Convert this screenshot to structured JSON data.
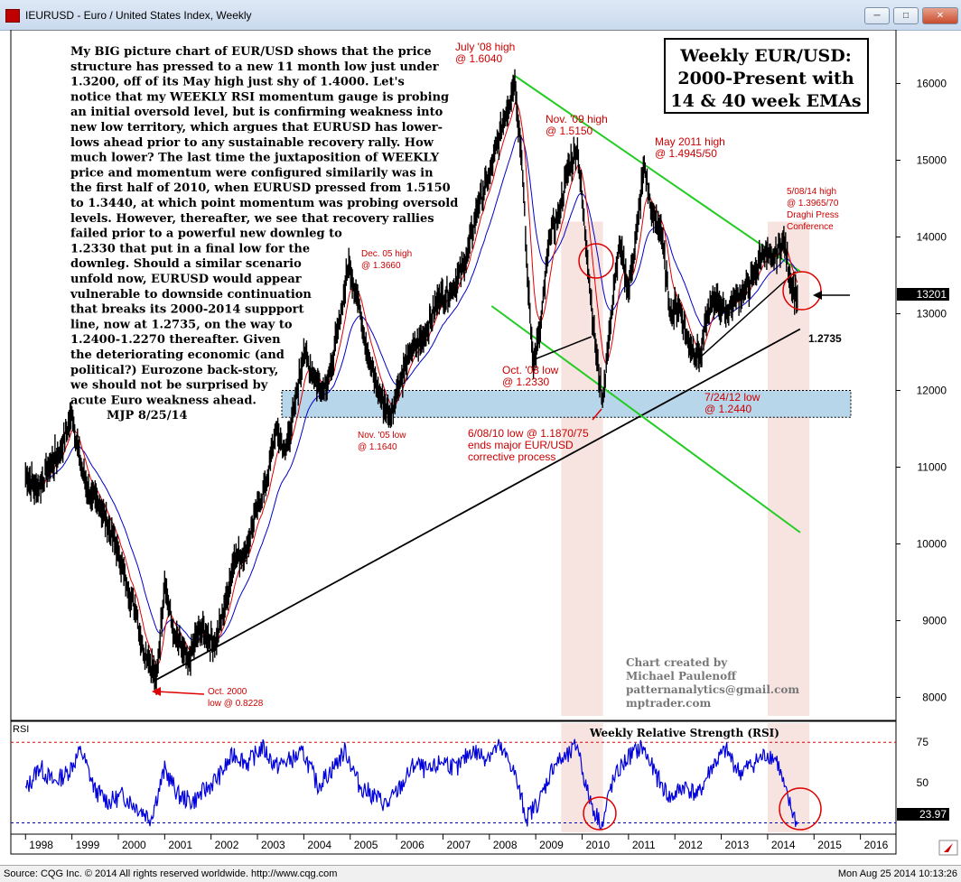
{
  "window": {
    "title": "IEURUSD - Euro / United States Index, Weekly",
    "buttons": [
      "minimize",
      "maximize",
      "close"
    ]
  },
  "status": {
    "source": "Source: CQG Inc. © 2014 All rights reserved worldwide. http://www.cqg.com",
    "datetime": "Mon Aug 25 2014 10:13:26"
  },
  "colors": {
    "price": "#000000",
    "ema14": "#e00000",
    "ema40": "#0000cc",
    "rsi": "#0000dd",
    "channel": "#22cc22",
    "annotation": "#cc0000",
    "zone": "#b8d6ea",
    "shade": "#f3d9d4"
  },
  "chart_data": [
    {
      "type": "line",
      "title": "Weekly EUR/USD: 2000-Present with 14 & 40 week EMAs",
      "x_axis_labels": [
        "1998",
        "1999",
        "2000",
        "2001",
        "2002",
        "2003",
        "2004",
        "2005",
        "2006",
        "2007",
        "2008",
        "2009",
        "2010",
        "2011",
        "2012",
        "2013",
        "2014",
        "2015",
        "2016"
      ],
      "y_ticks": [
        8000,
        9000,
        10000,
        11000,
        12000,
        13000,
        14000,
        15000,
        16000
      ],
      "ylim": [
        7700,
        16700
      ],
      "last_price": "13201",
      "series": [
        {
          "name": "EURUSD",
          "x": [
            1998.0,
            1998.25,
            1998.5,
            1998.75,
            1999.0,
            1999.2,
            1999.4,
            1999.6,
            1999.8,
            2000.0,
            2000.2,
            2000.4,
            2000.5,
            2000.65,
            2000.82,
            2001.0,
            2001.2,
            2001.4,
            2001.5,
            2001.75,
            2001.9,
            2002.1,
            2002.3,
            2002.5,
            2002.75,
            2003.0,
            2003.2,
            2003.4,
            2003.6,
            2003.8,
            2004.0,
            2004.2,
            2004.4,
            2004.6,
            2004.8,
            2004.97,
            2005.2,
            2005.4,
            2005.6,
            2005.87,
            2006.0,
            2006.3,
            2006.6,
            2006.9,
            2007.2,
            2007.5,
            2007.75,
            2008.0,
            2008.3,
            2008.55,
            2008.7,
            2008.82,
            2008.95,
            2009.1,
            2009.3,
            2009.5,
            2009.7,
            2009.9,
            2010.1,
            2010.3,
            2010.44,
            2010.6,
            2010.8,
            2011.0,
            2011.2,
            2011.34,
            2011.5,
            2011.7,
            2011.9,
            2012.1,
            2012.3,
            2012.56,
            2012.7,
            2012.9,
            2013.1,
            2013.3,
            2013.5,
            2013.7,
            2013.9,
            2014.1,
            2014.35,
            2014.5,
            2014.64
          ],
          "values": [
            10900,
            10700,
            11000,
            11200,
            11700,
            11000,
            10600,
            10500,
            10200,
            9900,
            9400,
            9100,
            8700,
            8500,
            8230,
            9500,
            8800,
            8600,
            8440,
            8900,
            8800,
            8700,
            9200,
            9800,
            9900,
            10500,
            10800,
            11500,
            11200,
            11800,
            12500,
            12200,
            12000,
            12300,
            13000,
            13660,
            13100,
            12400,
            12000,
            11640,
            12000,
            12500,
            12700,
            13200,
            13300,
            13700,
            14400,
            14800,
            15500,
            16040,
            15000,
            13500,
            12330,
            12800,
            14000,
            14300,
            14900,
            15150,
            13800,
            12500,
            11870,
            12800,
            13900,
            13300,
            14200,
            14945,
            14300,
            14100,
            13000,
            13100,
            12600,
            12440,
            13000,
            13200,
            13000,
            13200,
            13300,
            13500,
            13800,
            13700,
            13965,
            13400,
            13201
          ]
        }
      ],
      "annotations": [
        {
          "text": "July '08 high",
          "sub": "@ 1.6040"
        },
        {
          "text": "Nov. '09 high",
          "sub": "@ 1.5150"
        },
        {
          "text": "May 2011 high",
          "sub": "@ 1.4945/50"
        },
        {
          "text": "5/08/14 high",
          "sub": "@ 1.3965/70",
          "sub2": "Draghi Press",
          "sub3": "Conference"
        },
        {
          "text": "Dec. 05 high",
          "sub": "@ 1.3660"
        },
        {
          "text": "Oct. '08 low",
          "sub": "@ 1.2330"
        },
        {
          "text": "Nov. '05 low",
          "sub": "@ 1.1640"
        },
        {
          "text": "7/24/12 low",
          "sub": "@ 1.2440"
        },
        {
          "text": "6/08/10 low @ 1.1870/75",
          "sub": "ends major EUR/USD",
          "sub2": "corrective process"
        },
        {
          "text": "Oct. 2000",
          "sub": "low @ 0.8228"
        },
        {
          "text": "1.2735"
        }
      ],
      "commentary": [
        "My BIG picture chart of EUR/USD shows that the price",
        "structure has pressed to a new 11 month low just under",
        "1.3200, off of its May high just shy of 1.4000. Let's",
        "notice that my WEEKLY RSI momentum gauge is probing",
        "an initial oversold level, but is confirming weakness into",
        "new low territory, which argues that EURUSD has lower-",
        "lows ahead prior to any sustainable recovery rally. How",
        "much lower? The last time the juxtaposition of WEEKLY",
        "price and momentum were configured similarily was in",
        "the first half of 2010, when EURUSD pressed from 1.5150",
        "to 1.3440, at which point momentum was probing oversold",
        "levels. However, thereafter, we see that recovery rallies",
        "failed prior to a powerful new downleg to",
        "1.2330 that put in a final low for the",
        "downleg. Should a similar scenario",
        "unfold now, EURUSD would appear",
        "vulnerable to downside continuation",
        "that breaks its 2000-2014 suppport",
        "line, now at 1.2735, on the way to",
        "1.2400-1.2270 thereafter. Given",
        "the deteriorating economic (and",
        "political?) Eurozone back-story,",
        "we should not be surprised by",
        "acute Euro weakness ahead.",
        "MJP  8/25/14"
      ],
      "credit": [
        "Chart created by",
        "Michael Paulenoff",
        "patternanalytics@gmail.com",
        "mptrader.com"
      ]
    },
    {
      "type": "line",
      "title": "Weekly Relative Strength (RSI)",
      "panel_label": "RSI",
      "y_ticks": [
        50,
        75
      ],
      "ylim": [
        18,
        88
      ],
      "last_value": "23.97",
      "series": [
        {
          "name": "RSI",
          "x": [
            1998.0,
            1998.3,
            1998.6,
            1998.9,
            1999.2,
            1999.5,
            1999.8,
            2000.1,
            2000.4,
            2000.7,
            2001.0,
            2001.3,
            2001.6,
            2001.9,
            2002.2,
            2002.5,
            2002.8,
            2003.1,
            2003.4,
            2003.7,
            2004.0,
            2004.3,
            2004.6,
            2004.9,
            2005.2,
            2005.5,
            2005.8,
            2006.1,
            2006.4,
            2006.7,
            2007.0,
            2007.3,
            2007.6,
            2007.9,
            2008.2,
            2008.5,
            2008.8,
            2009.1,
            2009.4,
            2009.7,
            2009.9,
            2010.1,
            2010.3,
            2010.45,
            2010.6,
            2010.8,
            2011.0,
            2011.3,
            2011.6,
            2011.9,
            2012.2,
            2012.5,
            2012.8,
            2013.1,
            2013.4,
            2013.7,
            2014.0,
            2014.2,
            2014.4,
            2014.64
          ],
          "values": [
            45,
            60,
            50,
            56,
            70,
            45,
            38,
            42,
            35,
            28,
            58,
            42,
            38,
            46,
            55,
            68,
            62,
            72,
            60,
            64,
            68,
            48,
            58,
            70,
            48,
            42,
            36,
            48,
            62,
            56,
            64,
            58,
            70,
            66,
            72,
            60,
            28,
            40,
            62,
            66,
            74,
            45,
            30,
            24,
            46,
            58,
            66,
            72,
            54,
            40,
            48,
            42,
            60,
            70,
            56,
            62,
            68,
            64,
            42,
            24
          ]
        }
      ]
    }
  ]
}
